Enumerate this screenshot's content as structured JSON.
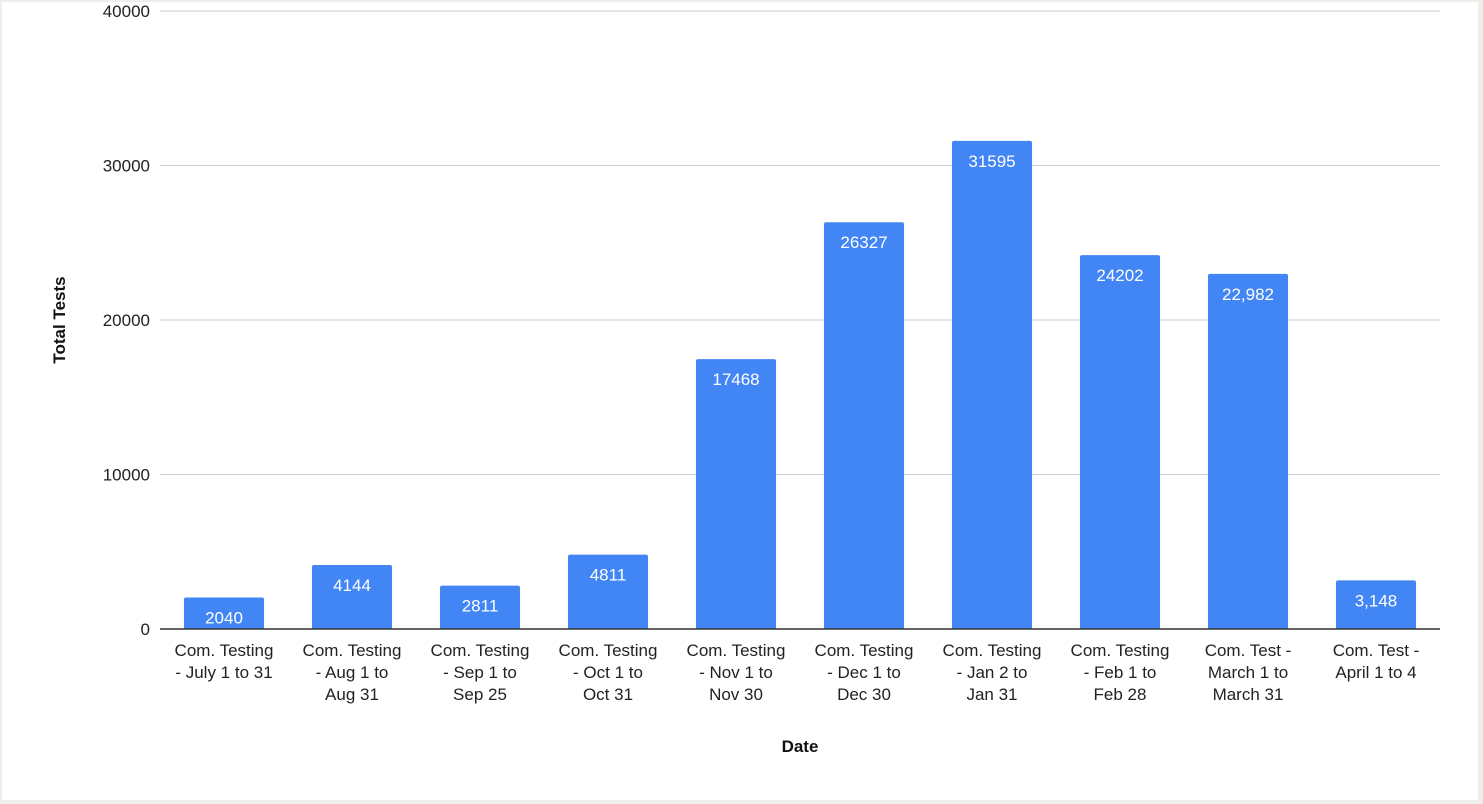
{
  "chart_data": {
    "type": "bar",
    "title": "",
    "xlabel": "Date",
    "ylabel": "Total Tests",
    "ylim": [
      0,
      40000
    ],
    "yticks": [
      "0",
      "10000",
      "20000",
      "30000",
      "40000"
    ],
    "grid": true,
    "bar_color": "#4285f4",
    "categories": [
      [
        "Com. Testing",
        "- July 1 to 31"
      ],
      [
        "Com. Testing",
        "- Aug 1 to",
        "Aug 31"
      ],
      [
        "Com. Testing",
        "- Sep 1 to",
        "Sep 25"
      ],
      [
        "Com. Testing",
        "- Oct 1 to",
        "Oct 31"
      ],
      [
        "Com. Testing",
        "- Nov 1 to",
        "Nov 30"
      ],
      [
        "Com. Testing",
        "- Dec 1 to",
        "Dec 30"
      ],
      [
        "Com. Testing",
        "- Jan 2 to",
        "Jan 31"
      ],
      [
        "Com. Testing",
        "- Feb 1 to",
        "Feb 28"
      ],
      [
        "Com. Test -",
        "March 1 to",
        "March 31"
      ],
      [
        "Com. Test -",
        "April 1 to 4"
      ]
    ],
    "values": [
      2040,
      4144,
      2811,
      4811,
      17468,
      26327,
      31595,
      24202,
      22982,
      3148
    ],
    "data_labels": [
      "2040",
      "4144",
      "2811",
      "4811",
      "17468",
      "26327",
      "31595",
      "24202",
      "22,982",
      "3,148"
    ]
  }
}
